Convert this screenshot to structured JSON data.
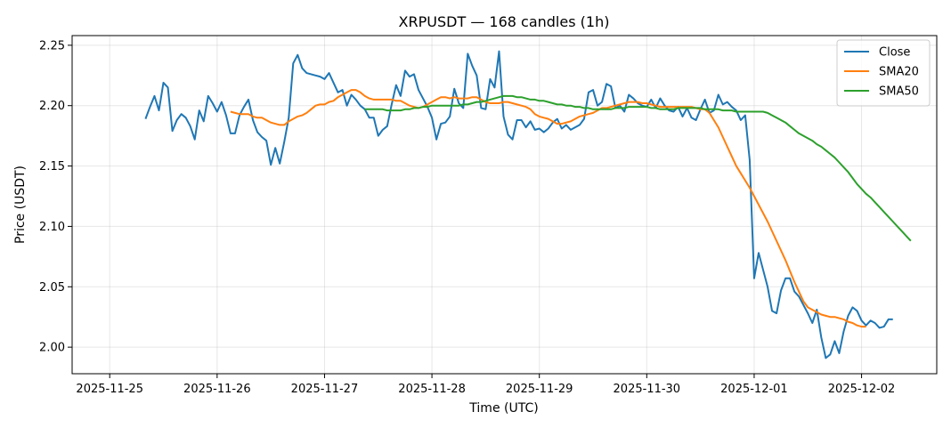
{
  "chart_data": {
    "type": "line",
    "title": "XRPUSDT — 168 candles (1h)",
    "xlabel": "Time (UTC)",
    "ylabel": "Price (USDT)",
    "x_start": "2025-11-25 08:00",
    "x_step_hours": 1,
    "xlim_days": [
      -0.35,
      7.7
    ],
    "ylim": [
      1.978,
      2.258
    ],
    "x_ticks": [
      {
        "day": 0,
        "label": "2025-11-25"
      },
      {
        "day": 1,
        "label": "2025-11-26"
      },
      {
        "day": 2,
        "label": "2025-11-27"
      },
      {
        "day": 3,
        "label": "2025-11-28"
      },
      {
        "day": 4,
        "label": "2025-11-29"
      },
      {
        "day": 5,
        "label": "2025-11-30"
      },
      {
        "day": 6,
        "label": "2025-12-01"
      },
      {
        "day": 7,
        "label": "2025-12-02"
      }
    ],
    "y_ticks": [
      {
        "value": 2.0,
        "label": "2.00"
      },
      {
        "value": 2.05,
        "label": "2.05"
      },
      {
        "value": 2.1,
        "label": "2.10"
      },
      {
        "value": 2.15,
        "label": "2.15"
      },
      {
        "value": 2.2,
        "label": "2.20"
      },
      {
        "value": 2.25,
        "label": "2.25"
      }
    ],
    "grid": true,
    "legend": {
      "position": "top-right",
      "entries": [
        "Close",
        "SMA20",
        "SMA50"
      ]
    },
    "series": [
      {
        "name": "Close",
        "color": "#1f77b4",
        "values": [
          2.189,
          2.199,
          2.208,
          2.196,
          2.219,
          2.215,
          2.179,
          2.188,
          2.193,
          2.19,
          2.183,
          2.172,
          2.196,
          2.187,
          2.208,
          2.202,
          2.195,
          2.203,
          2.192,
          2.177,
          2.177,
          2.192,
          2.199,
          2.205,
          2.188,
          2.178,
          2.174,
          2.171,
          2.151,
          2.165,
          2.152,
          2.17,
          2.19,
          2.235,
          2.242,
          2.231,
          2.227,
          2.226,
          2.225,
          2.224,
          2.222,
          2.227,
          2.219,
          2.211,
          2.213,
          2.2,
          2.209,
          2.205,
          2.2,
          2.197,
          2.19,
          2.19,
          2.175,
          2.18,
          2.183,
          2.201,
          2.217,
          2.208,
          2.229,
          2.224,
          2.226,
          2.213,
          2.206,
          2.199,
          2.19,
          2.172,
          2.185,
          2.186,
          2.191,
          2.214,
          2.202,
          2.198,
          2.243,
          2.233,
          2.225,
          2.198,
          2.197,
          2.222,
          2.215,
          2.245,
          2.191,
          2.176,
          2.172,
          2.188,
          2.188,
          2.182,
          2.187,
          2.18,
          2.181,
          2.178,
          2.181,
          2.186,
          2.189,
          2.181,
          2.184,
          2.18,
          2.182,
          2.184,
          2.189,
          2.211,
          2.213,
          2.2,
          2.203,
          2.218,
          2.216,
          2.198,
          2.2,
          2.195,
          2.209,
          2.206,
          2.202,
          2.2,
          2.199,
          2.205,
          2.198,
          2.206,
          2.2,
          2.196,
          2.195,
          2.199,
          2.191,
          2.198,
          2.19,
          2.188,
          2.197,
          2.205,
          2.194,
          2.196,
          2.209,
          2.201,
          2.203,
          2.199,
          2.196,
          2.188,
          2.192,
          2.155,
          2.057,
          2.078,
          2.064,
          2.05,
          2.03,
          2.028,
          2.047,
          2.057,
          2.057,
          2.046,
          2.042,
          2.035,
          2.028,
          2.02,
          2.031,
          2.008,
          1.991,
          1.994,
          2.005,
          1.995,
          2.013,
          2.026,
          2.033,
          2.03,
          2.022,
          2.018,
          2.022,
          2.02,
          2.016,
          2.017,
          2.023,
          2.023
        ]
      },
      {
        "name": "SMA20",
        "color": "#ff7f0e",
        "start_index": 19,
        "values": [
          2.195,
          2.194,
          2.193,
          2.193,
          2.193,
          2.191,
          2.19,
          2.19,
          2.188,
          2.186,
          2.185,
          2.184,
          2.184,
          2.187,
          2.189,
          2.191,
          2.192,
          2.194,
          2.197,
          2.2,
          2.201,
          2.201,
          2.203,
          2.204,
          2.207,
          2.209,
          2.211,
          2.213,
          2.213,
          2.211,
          2.208,
          2.206,
          2.205,
          2.205,
          2.205,
          2.205,
          2.205,
          2.204,
          2.204,
          2.202,
          2.2,
          2.199,
          2.198,
          2.199,
          2.201,
          2.203,
          2.205,
          2.207,
          2.207,
          2.206,
          2.207,
          2.206,
          2.206,
          2.206,
          2.207,
          2.207,
          2.205,
          2.203,
          2.202,
          2.202,
          2.202,
          2.203,
          2.203,
          2.202,
          2.201,
          2.2,
          2.199,
          2.197,
          2.193,
          2.191,
          2.19,
          2.189,
          2.187,
          2.185,
          2.185,
          2.186,
          2.187,
          2.189,
          2.191,
          2.192,
          2.193,
          2.194,
          2.196,
          2.198,
          2.198,
          2.199,
          2.2,
          2.201,
          2.202,
          2.203,
          2.203,
          2.203,
          2.202,
          2.202,
          2.201,
          2.2,
          2.199,
          2.199,
          2.199,
          2.199,
          2.199,
          2.199,
          2.199,
          2.199,
          2.198,
          2.197,
          2.197,
          2.194,
          2.188,
          2.182,
          2.174,
          2.166,
          2.158,
          2.15,
          2.144,
          2.138,
          2.132,
          2.125,
          2.118,
          2.111,
          2.104,
          2.096,
          2.088,
          2.08,
          2.072,
          2.063,
          2.054,
          2.046,
          2.038,
          2.033,
          2.031,
          2.029,
          2.027,
          2.026,
          2.025,
          2.025,
          2.024,
          2.023,
          2.021,
          2.02,
          2.018,
          2.017,
          2.017
        ]
      },
      {
        "name": "SMA50",
        "color": "#2ca02c",
        "start_index": 49,
        "values": [
          2.197,
          2.197,
          2.197,
          2.197,
          2.197,
          2.196,
          2.196,
          2.196,
          2.196,
          2.197,
          2.197,
          2.198,
          2.198,
          2.199,
          2.199,
          2.2,
          2.2,
          2.2,
          2.2,
          2.2,
          2.2,
          2.2,
          2.201,
          2.201,
          2.202,
          2.203,
          2.203,
          2.204,
          2.205,
          2.206,
          2.207,
          2.208,
          2.208,
          2.208,
          2.207,
          2.207,
          2.206,
          2.205,
          2.205,
          2.204,
          2.204,
          2.203,
          2.202,
          2.201,
          2.201,
          2.2,
          2.2,
          2.199,
          2.199,
          2.198,
          2.198,
          2.197,
          2.197,
          2.197,
          2.197,
          2.197,
          2.198,
          2.198,
          2.198,
          2.199,
          2.199,
          2.199,
          2.199,
          2.199,
          2.198,
          2.198,
          2.197,
          2.197,
          2.197,
          2.197,
          2.198,
          2.198,
          2.198,
          2.198,
          2.198,
          2.198,
          2.197,
          2.197,
          2.197,
          2.197,
          2.196,
          2.196,
          2.196,
          2.195,
          2.195,
          2.195,
          2.195,
          2.195,
          2.195,
          2.195,
          2.194,
          2.192,
          2.19,
          2.188,
          2.186,
          2.183,
          2.18,
          2.177,
          2.175,
          2.173,
          2.171,
          2.168,
          2.166,
          2.163,
          2.16,
          2.157,
          2.153,
          2.149,
          2.145,
          2.14,
          2.135,
          2.131,
          2.127,
          2.124,
          2.12,
          2.116,
          2.112,
          2.108,
          2.104,
          2.1,
          2.096,
          2.092,
          2.088
        ]
      }
    ]
  }
}
